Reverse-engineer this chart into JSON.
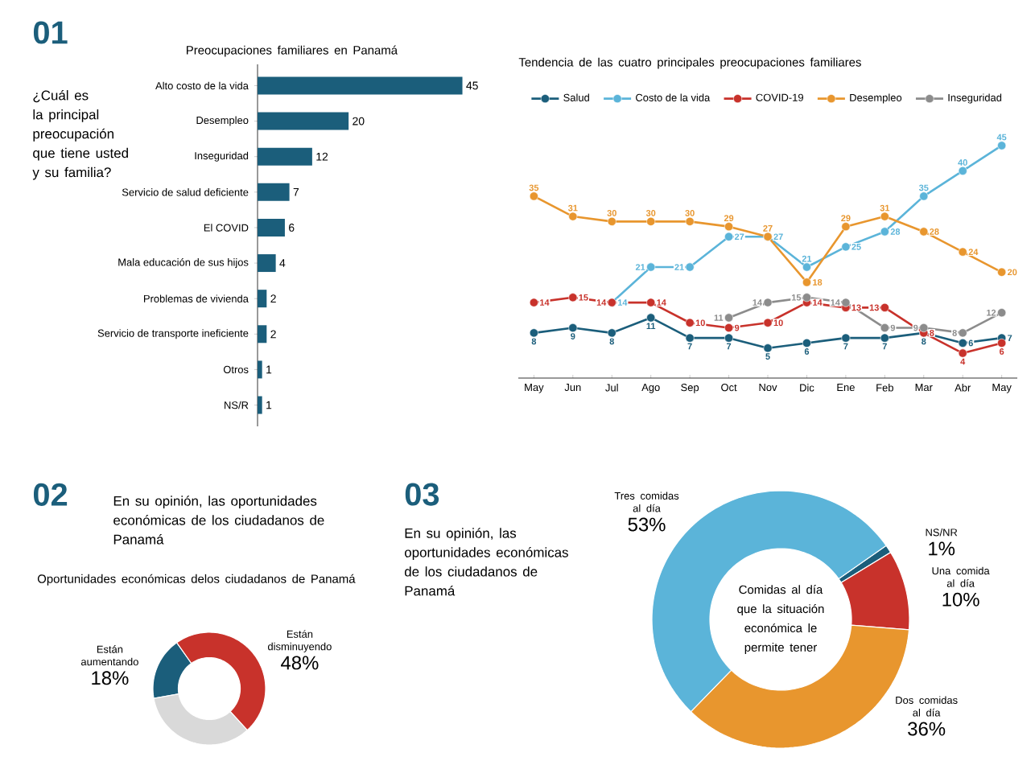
{
  "chart_data": [
    {
      "type": "bar",
      "orientation": "horizontal",
      "title": "Preocupaciones familiares en Panamá",
      "annotations": [
        "01",
        "¿Cuál es la principal preocupación que tiene usted y su familia?"
      ],
      "categories": [
        "Alto costo de la vida",
        "Desempleo",
        "Inseguridad",
        "Servicio de salud deficiente",
        "El COVID",
        "Mala educación de sus hijos",
        "Problemas de vivienda",
        "Servicio de transporte ineficiente",
        "Otros",
        "NS/R"
      ],
      "values": [
        45,
        20,
        12,
        7,
        6,
        4,
        2,
        2,
        1,
        1
      ],
      "color": "#1b5e7b",
      "data_labels": true,
      "tick_labels": "y"
    },
    {
      "type": "line",
      "title": "Tendencia de las cuatro principales preocupaciones familiares",
      "categories": [
        "May",
        "Jun",
        "Jul",
        "Ago",
        "Sep",
        "Oct",
        "Nov",
        "Dic",
        "Ene",
        "Feb",
        "Mar",
        "Abr",
        "May"
      ],
      "series": [
        {
          "name": "Salud",
          "color": "#1b5e7b",
          "values": [
            8,
            9,
            8,
            11,
            7,
            7,
            5,
            6,
            7,
            7,
            8,
            6,
            7
          ]
        },
        {
          "name": "Costo de la vida",
          "color": "#5bb4d9",
          "values": [
            null,
            null,
            14,
            21,
            21,
            27,
            27,
            21,
            25,
            28,
            35,
            40,
            45
          ]
        },
        {
          "name": "COVID-19",
          "color": "#c8322b",
          "values": [
            14,
            15,
            14,
            14,
            10,
            9,
            10,
            14,
            13,
            13,
            8,
            4,
            6
          ]
        },
        {
          "name": "Desempleo",
          "color": "#e8962e",
          "values": [
            35,
            31,
            30,
            30,
            30,
            29,
            27,
            18,
            29,
            31,
            28,
            24,
            20
          ]
        },
        {
          "name": "Inseguridad",
          "color": "#8c8c8c",
          "values": [
            null,
            null,
            null,
            null,
            null,
            11,
            14,
            15,
            14,
            9,
            9,
            8,
            12
          ]
        }
      ],
      "data_labels": true,
      "legend": "top",
      "marker": "circle",
      "tick_labels": "x"
    },
    {
      "type": "donut",
      "title": "Oportunidades económicas delos ciudadanos de Panamá",
      "annotations": [
        "02",
        "En su opinión, las oportunidades económicas de los ciudadanos de Panamá"
      ],
      "categories": [
        "Están aumentando",
        "Están disminuyendo",
        null
      ],
      "values": [
        18,
        48,
        34
      ],
      "colors": [
        "#1b5e7b",
        "#c8322b",
        "#d9d9d9"
      ],
      "value_labels": [
        "18%",
        "48%",
        null
      ]
    },
    {
      "type": "donut",
      "title": "Comidas al día que la situación económica le permite tener",
      "annotations": [
        "03",
        "En su opinión, las oportunidades económicas de los ciudadanos de Panamá"
      ],
      "categories": [
        "NS/NR",
        "Una comida al día",
        "Dos comidas al día",
        "Tres comidas al día"
      ],
      "values": [
        1,
        10,
        36,
        53
      ],
      "colors": [
        "#1b5e7b",
        "#c8322b",
        "#e8962e",
        "#5bb4d9"
      ],
      "value_labels": [
        "1%",
        "10%",
        "36%",
        "53%"
      ]
    }
  ]
}
